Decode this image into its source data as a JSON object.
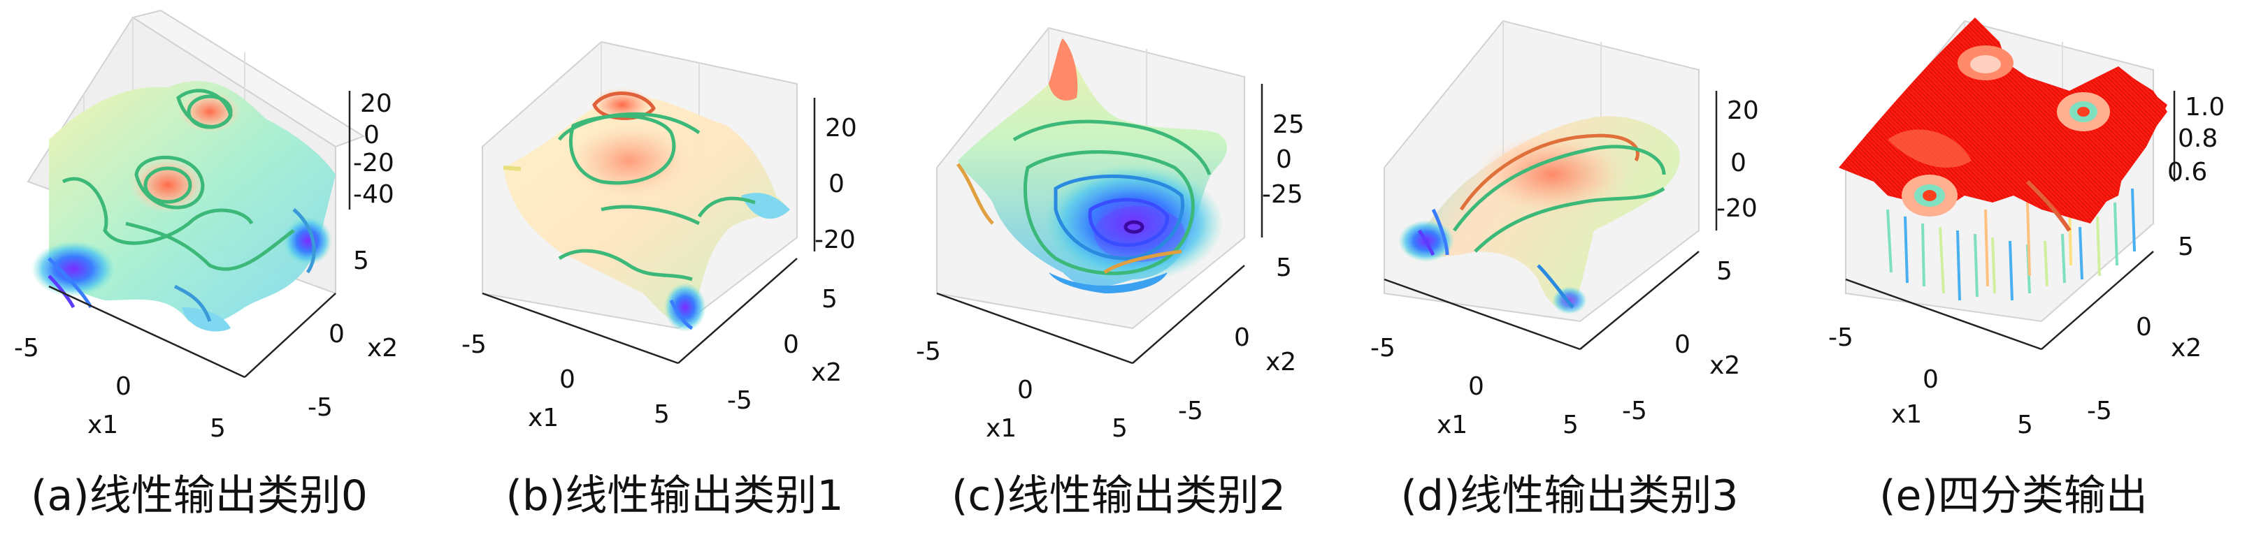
{
  "chart_data": [
    {
      "type": "surface3d",
      "caption": "(a)线性输出类别0",
      "xlabel": "x1",
      "ylabel": "x2",
      "x_ticks": [
        "-5",
        "0",
        "5"
      ],
      "y_ticks": [
        "-5",
        "0",
        "5"
      ],
      "z_ticks": [
        "20",
        "0",
        "-20",
        "-40"
      ],
      "zlim": [
        -45,
        25
      ],
      "contours": true,
      "colormap": "rainbow"
    },
    {
      "type": "surface3d",
      "caption": "(b)线性输出类别1",
      "xlabel": "x1",
      "ylabel": "x2",
      "x_ticks": [
        "-5",
        "0",
        "5"
      ],
      "y_ticks": [
        "-5",
        "0",
        "5"
      ],
      "z_ticks": [
        "20",
        "0",
        "-20"
      ],
      "zlim": [
        -25,
        25
      ],
      "contours": true,
      "colormap": "rainbow"
    },
    {
      "type": "surface3d",
      "caption": "(c)线性输出类别2",
      "xlabel": "x1",
      "ylabel": "x2",
      "x_ticks": [
        "-5",
        "0",
        "5"
      ],
      "y_ticks": [
        "-5",
        "0",
        "5"
      ],
      "z_ticks": [
        "25",
        "0",
        "-25"
      ],
      "zlim": [
        -40,
        35
      ],
      "contours": true,
      "colormap": "rainbow"
    },
    {
      "type": "surface3d",
      "caption": "(d)线性输出类别3",
      "xlabel": "x1",
      "ylabel": "x2",
      "x_ticks": [
        "-5",
        "0",
        "5"
      ],
      "y_ticks": [
        "-5",
        "0",
        "5"
      ],
      "z_ticks": [
        "20",
        "0",
        "-20"
      ],
      "zlim": [
        -25,
        25
      ],
      "contours": true,
      "colormap": "rainbow"
    },
    {
      "type": "surface3d",
      "caption": "(e)四分类输出",
      "xlabel": "x1",
      "ylabel": "x2",
      "x_ticks": [
        "-5",
        "0",
        "5"
      ],
      "y_ticks": [
        "-5",
        "0",
        "5"
      ],
      "z_ticks": [
        "1.0",
        "0.8",
        "0.6"
      ],
      "zlim": [
        0.5,
        1.0
      ],
      "contours": false,
      "colormap": "rainbow"
    }
  ],
  "colors": {
    "low": "#7b2cff",
    "mid_low": "#3fa9ff",
    "mid": "#58e0b8",
    "mid_high": "#d8f0a0",
    "high": "#ff9a7a",
    "top": "#ff2a1a",
    "contour": "#3cb878"
  }
}
